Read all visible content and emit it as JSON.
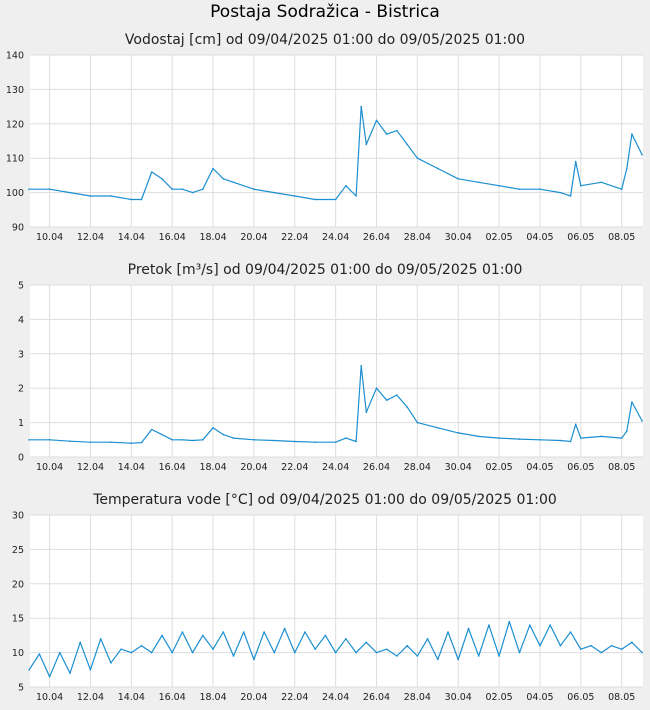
{
  "page_title": "Postaja Sodražica - Bistrica",
  "colors": {
    "line": "#1b8fd1",
    "grid": "#dedede",
    "background": "#efefef",
    "plot_background": "#ffffff"
  },
  "chart_data": [
    {
      "type": "line",
      "title": "Vodostaj [cm] od 09/04/2025 01:00 do 09/05/2025 01:00",
      "xlabel": "",
      "ylabel": "",
      "grid": true,
      "x_ticks": [
        "10.04",
        "12.04",
        "14.04",
        "16.04",
        "18.04",
        "20.04",
        "22.04",
        "24.04",
        "26.04",
        "28.04",
        "30.04",
        "02.05",
        "04.05",
        "06.05",
        "08.05"
      ],
      "y_ticks": [
        "90",
        "100",
        "110",
        "120",
        "130",
        "140"
      ],
      "ylim": [
        90,
        140
      ],
      "xlim": [
        "2025-04-09 01:00",
        "2025-05-09 01:00"
      ],
      "series": [
        {
          "x": [
            "2025-04-09",
            "2025-04-10",
            "2025-04-11",
            "2025-04-12",
            "2025-04-13",
            "2025-04-14",
            "2025-04-14 12:00",
            "2025-04-15",
            "2025-04-15 12:00",
            "2025-04-16",
            "2025-04-16 12:00",
            "2025-04-17",
            "2025-04-17 12:00",
            "2025-04-18",
            "2025-04-18 12:00",
            "2025-04-19",
            "2025-04-20",
            "2025-04-21",
            "2025-04-22",
            "2025-04-23",
            "2025-04-24",
            "2025-04-24 12:00",
            "2025-04-25",
            "2025-04-25 06:00",
            "2025-04-25 12:00",
            "2025-04-26",
            "2025-04-26 12:00",
            "2025-04-27",
            "2025-04-27 12:00",
            "2025-04-28",
            "2025-04-29",
            "2025-04-30",
            "2025-05-01",
            "2025-05-02",
            "2025-05-03",
            "2025-05-04",
            "2025-05-05",
            "2025-05-05 12:00",
            "2025-05-05 18:00",
            "2025-05-06",
            "2025-05-07",
            "2025-05-08",
            "2025-05-08 06:00",
            "2025-05-08 12:00",
            "2025-05-09"
          ],
          "y": [
            101,
            101,
            100,
            99,
            99,
            98,
            98,
            106,
            104,
            101,
            101,
            100,
            101,
            107,
            104,
            103,
            101,
            100,
            99,
            98,
            98,
            102,
            99,
            125,
            114,
            121,
            117,
            118,
            114,
            110,
            107,
            104,
            103,
            102,
            101,
            101,
            100,
            99,
            109,
            102,
            103,
            101,
            107,
            117,
            111
          ]
        }
      ]
    },
    {
      "type": "line",
      "title": "Pretok [m³/s] od 09/04/2025 01:00 do 09/05/2025 01:00",
      "xlabel": "",
      "ylabel": "",
      "grid": true,
      "x_ticks": [
        "10.04",
        "12.04",
        "14.04",
        "16.04",
        "18.04",
        "20.04",
        "22.04",
        "24.04",
        "26.04",
        "28.04",
        "30.04",
        "02.05",
        "04.05",
        "06.05",
        "08.05"
      ],
      "y_ticks": [
        "0",
        "1",
        "2",
        "3",
        "4",
        "5"
      ],
      "ylim": [
        0,
        5
      ],
      "xlim": [
        "2025-04-09 01:00",
        "2025-05-09 01:00"
      ],
      "series": [
        {
          "x": [
            "2025-04-09",
            "2025-04-10",
            "2025-04-11",
            "2025-04-12",
            "2025-04-13",
            "2025-04-14",
            "2025-04-14 12:00",
            "2025-04-15",
            "2025-04-15 12:00",
            "2025-04-16",
            "2025-04-16 12:00",
            "2025-04-17",
            "2025-04-17 12:00",
            "2025-04-18",
            "2025-04-18 12:00",
            "2025-04-19",
            "2025-04-20",
            "2025-04-21",
            "2025-04-22",
            "2025-04-23",
            "2025-04-24",
            "2025-04-24 12:00",
            "2025-04-25",
            "2025-04-25 06:00",
            "2025-04-25 12:00",
            "2025-04-26",
            "2025-04-26 12:00",
            "2025-04-27",
            "2025-04-27 12:00",
            "2025-04-28",
            "2025-04-29",
            "2025-04-30",
            "2025-05-01",
            "2025-05-02",
            "2025-05-03",
            "2025-05-04",
            "2025-05-05",
            "2025-05-05 12:00",
            "2025-05-05 18:00",
            "2025-05-06",
            "2025-05-07",
            "2025-05-08",
            "2025-05-08 06:00",
            "2025-05-08 12:00",
            "2025-05-09"
          ],
          "y": [
            0.5,
            0.5,
            0.46,
            0.43,
            0.43,
            0.4,
            0.42,
            0.8,
            0.65,
            0.5,
            0.5,
            0.48,
            0.5,
            0.85,
            0.65,
            0.55,
            0.5,
            0.48,
            0.45,
            0.43,
            0.43,
            0.55,
            0.45,
            2.65,
            1.3,
            2.0,
            1.65,
            1.8,
            1.45,
            1.0,
            0.85,
            0.7,
            0.6,
            0.55,
            0.52,
            0.5,
            0.48,
            0.45,
            0.95,
            0.55,
            0.6,
            0.55,
            0.75,
            1.6,
            1.05
          ]
        }
      ]
    },
    {
      "type": "line",
      "title": "Temperatura vode [°C] od 09/04/2025 01:00 do 09/05/2025 01:00",
      "xlabel": "",
      "ylabel": "",
      "grid": true,
      "x_ticks": [
        "10.04",
        "12.04",
        "14.04",
        "16.04",
        "18.04",
        "20.04",
        "22.04",
        "24.04",
        "26.04",
        "28.04",
        "30.04",
        "02.05",
        "04.05",
        "06.05",
        "08.05"
      ],
      "y_ticks": [
        "5",
        "10",
        "15",
        "20",
        "25",
        "30"
      ],
      "ylim": [
        5,
        30
      ],
      "xlim": [
        "2025-04-09 01:00",
        "2025-05-09 01:00"
      ],
      "series": [
        {
          "x": [
            "2025-04-09",
            "2025-04-09 12:00",
            "2025-04-10",
            "2025-04-10 12:00",
            "2025-04-11",
            "2025-04-11 12:00",
            "2025-04-12",
            "2025-04-12 12:00",
            "2025-04-13",
            "2025-04-13 12:00",
            "2025-04-14",
            "2025-04-14 12:00",
            "2025-04-15",
            "2025-04-15 12:00",
            "2025-04-16",
            "2025-04-16 12:00",
            "2025-04-17",
            "2025-04-17 12:00",
            "2025-04-18",
            "2025-04-18 12:00",
            "2025-04-19",
            "2025-04-19 12:00",
            "2025-04-20",
            "2025-04-20 12:00",
            "2025-04-21",
            "2025-04-21 12:00",
            "2025-04-22",
            "2025-04-22 12:00",
            "2025-04-23",
            "2025-04-23 12:00",
            "2025-04-24",
            "2025-04-24 12:00",
            "2025-04-25",
            "2025-04-25 12:00",
            "2025-04-26",
            "2025-04-26 12:00",
            "2025-04-27",
            "2025-04-27 12:00",
            "2025-04-28",
            "2025-04-28 12:00",
            "2025-04-29",
            "2025-04-29 12:00",
            "2025-04-30",
            "2025-04-30 12:00",
            "2025-05-01",
            "2025-05-01 12:00",
            "2025-05-02",
            "2025-05-02 12:00",
            "2025-05-03",
            "2025-05-03 12:00",
            "2025-05-04",
            "2025-05-04 12:00",
            "2025-05-05",
            "2025-05-05 12:00",
            "2025-05-06",
            "2025-05-06 12:00",
            "2025-05-07",
            "2025-05-07 12:00",
            "2025-05-08",
            "2025-05-08 12:00",
            "2025-05-09"
          ],
          "y": [
            7.5,
            9.8,
            6.5,
            10,
            7,
            11.5,
            7.5,
            12,
            8.5,
            10.5,
            10,
            11,
            10,
            12.5,
            10,
            13,
            10,
            12.5,
            10.5,
            13,
            9.5,
            13,
            9,
            13,
            10,
            13.5,
            10,
            13,
            10.5,
            12.5,
            10,
            12,
            10,
            11.5,
            10,
            10.5,
            9.5,
            11,
            9.5,
            12,
            9,
            13,
            9,
            13.5,
            9.5,
            14,
            9.5,
            14.5,
            10,
            14,
            11,
            14,
            11,
            13,
            10.5,
            11,
            10,
            11,
            10.5,
            11.5,
            10
          ]
        }
      ]
    }
  ]
}
